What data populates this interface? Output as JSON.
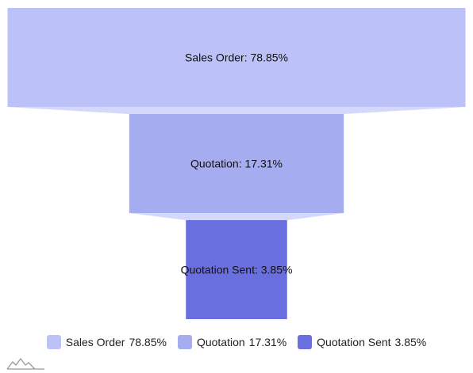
{
  "chart_data": {
    "type": "funnel",
    "stages": [
      {
        "name": "Sales Order",
        "value": 78.85,
        "label": "Sales Order: 78.85%",
        "legend_value": "78.85%",
        "color": "#bcc2f7"
      },
      {
        "name": "Quotation",
        "value": 17.31,
        "label": "Quotation: 17.31%",
        "legend_value": "17.31%",
        "color": "#a6acf0"
      },
      {
        "name": "Quotation Sent",
        "value": 3.85,
        "label": "Quotation Sent: 3.85%",
        "legend_value": "3.85%",
        "color": "#6a6fe0"
      }
    ],
    "connector_color": "#d4d8fa",
    "legend_placement": "bottom"
  },
  "branding": {
    "logo_icon": "mountain-peaks-icon",
    "logo_color": "#999999"
  }
}
